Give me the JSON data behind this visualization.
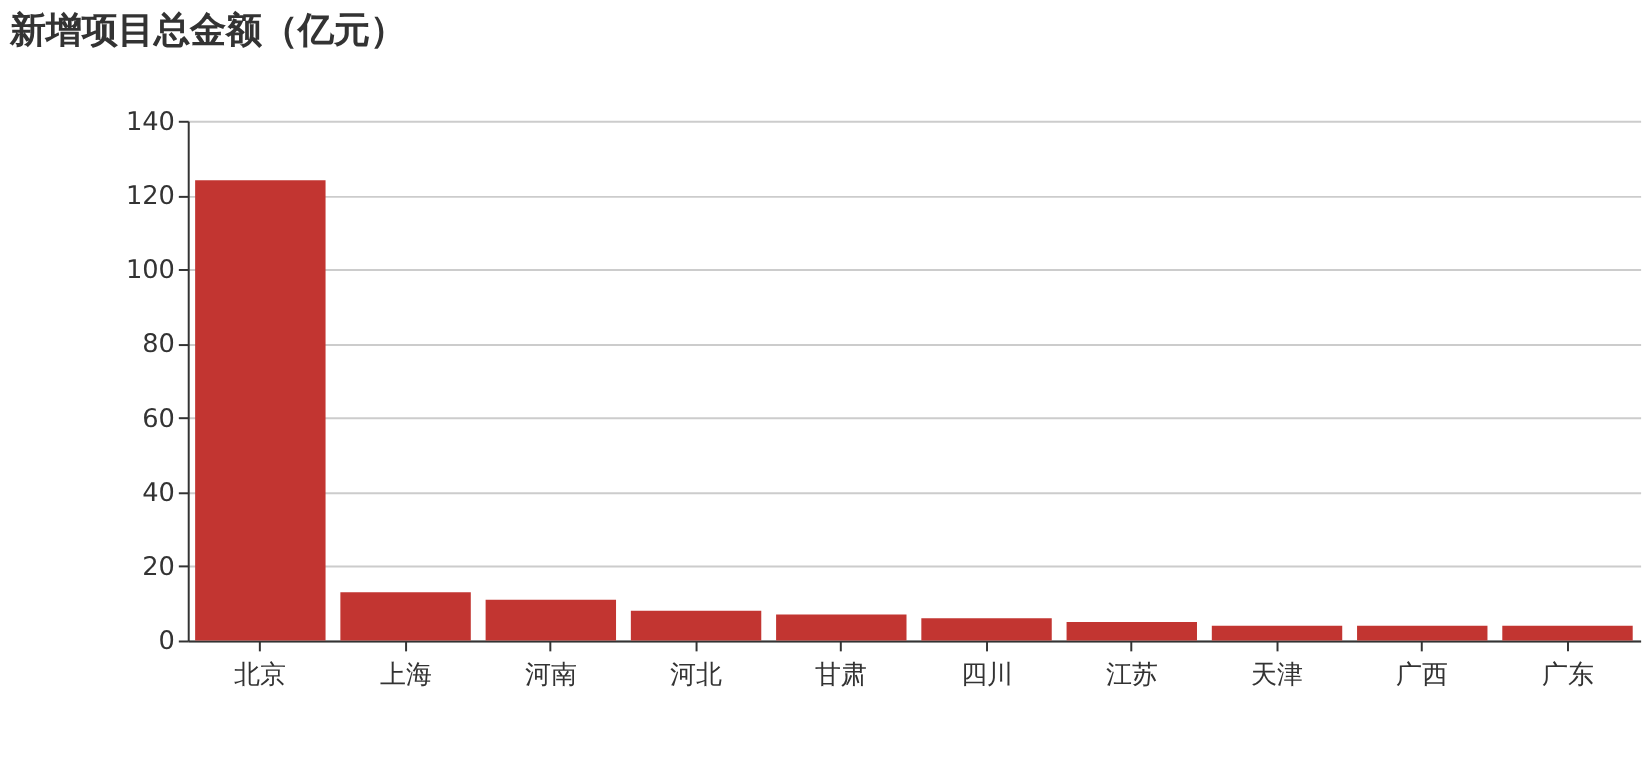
{
  "chart_data": {
    "type": "bar",
    "title": "新增项目总金额（亿元）",
    "categories": [
      "北京",
      "上海",
      "河南",
      "河北",
      "甘肃",
      "四川",
      "江苏",
      "天津",
      "广西",
      "广东"
    ],
    "values": [
      124,
      13,
      11,
      8,
      7,
      6,
      5,
      4,
      4,
      4
    ],
    "color": "#c23531",
    "ylim": [
      0,
      140
    ],
    "yticks": [
      0,
      20,
      40,
      60,
      80,
      100,
      120,
      140
    ],
    "grid": "y"
  }
}
